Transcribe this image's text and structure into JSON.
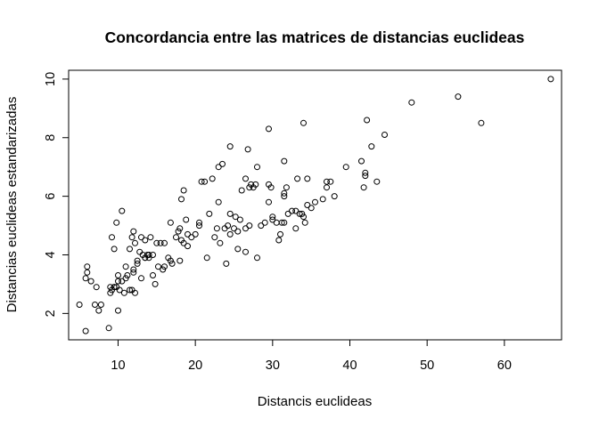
{
  "chart_data": {
    "type": "scatter",
    "title": "Concordancia entre las matrices de distancias euclideas",
    "xlabel": "Distancis euclideas",
    "ylabel": "Distancias euclideas estandarizadas",
    "xlim": [
      3.6,
      67.4
    ],
    "ylim": [
      1.1,
      10.3
    ],
    "xticks": [
      10,
      20,
      30,
      40,
      50,
      60
    ],
    "yticks": [
      2,
      4,
      6,
      8,
      10
    ],
    "grid": false,
    "legend": "none",
    "marker": "open-circle",
    "point_color": "#000000",
    "x": [
      5.0,
      5.8,
      5.8,
      6.0,
      6.5,
      6.0,
      7.0,
      7.2,
      7.5,
      7.8,
      8.8,
      9.0,
      9.2,
      9.2,
      9.5,
      9.5,
      9.8,
      9.8,
      10.0,
      10.0,
      10.2,
      10.5,
      10.5,
      10.8,
      11.0,
      11.2,
      11.5,
      11.5,
      11.8,
      11.8,
      12.0,
      12.0,
      12.2,
      12.2,
      12.5,
      12.8,
      13.0,
      13.0,
      13.2,
      13.5,
      13.5,
      13.8,
      14.0,
      14.2,
      14.5,
      14.8,
      15.0,
      15.2,
      15.8,
      16.0,
      16.5,
      16.8,
      16.8,
      17.5,
      17.8,
      18.0,
      18.2,
      18.5,
      18.5,
      18.8,
      19.0,
      19.5,
      20.0,
      20.5,
      20.8,
      21.2,
      21.8,
      22.2,
      22.8,
      23.0,
      23.2,
      23.5,
      23.8,
      24.0,
      24.2,
      24.5,
      25.0,
      25.2,
      25.5,
      25.8,
      26.0,
      26.5,
      26.8,
      27.0,
      27.2,
      27.5,
      27.8,
      28.0,
      28.5,
      29.0,
      29.5,
      29.8,
      30.0,
      30.5,
      30.8,
      31.0,
      31.2,
      31.5,
      31.5,
      31.8,
      32.0,
      32.5,
      33.0,
      33.2,
      33.5,
      33.8,
      34.0,
      34.2,
      34.5,
      35.0,
      35.5,
      36.5,
      37.0,
      37.5,
      38.0,
      39.5,
      41.5,
      41.8,
      42.0,
      42.2,
      42.8,
      43.5,
      44.5,
      48.0,
      54.0,
      57.0,
      66.0,
      9.0,
      9.5,
      10.0,
      11.0,
      12.0,
      12.5,
      14.0,
      14.5,
      15.5,
      17.0,
      18.0,
      18.2,
      19.0,
      20.5,
      21.5,
      22.5,
      23.0,
      24.5,
      24.5,
      25.5,
      26.5,
      27.0,
      28.0,
      29.5,
      30.0,
      31.5,
      31.5,
      33.0,
      34.0,
      34.5,
      37.0,
      42.0,
      26.5,
      29.5,
      13.5,
      16.0
    ],
    "y": [
      2.3,
      1.4,
      3.2,
      3.6,
      3.1,
      3.4,
      2.3,
      2.9,
      2.1,
      2.3,
      1.5,
      2.7,
      2.8,
      4.6,
      2.9,
      4.2,
      2.9,
      5.1,
      3.3,
      2.1,
      2.8,
      5.5,
      3.1,
      2.7,
      3.6,
      3.3,
      2.8,
      4.2,
      2.8,
      4.6,
      4.8,
      3.5,
      4.4,
      2.7,
      3.8,
      4.1,
      3.2,
      4.6,
      4.0,
      3.9,
      4.5,
      4.0,
      4.0,
      4.6,
      3.3,
      3.0,
      4.4,
      3.6,
      3.5,
      4.4,
      3.9,
      5.1,
      3.8,
      4.6,
      4.8,
      4.9,
      5.9,
      6.2,
      4.4,
      5.2,
      4.3,
      4.6,
      4.7,
      5.1,
      6.5,
      6.5,
      5.4,
      6.6,
      4.9,
      7.0,
      4.4,
      7.1,
      4.9,
      3.7,
      5.0,
      7.7,
      4.9,
      5.3,
      4.8,
      5.2,
      6.2,
      6.6,
      7.6,
      6.3,
      6.4,
      6.3,
      6.4,
      7.0,
      5.0,
      5.1,
      8.3,
      6.3,
      5.2,
      5.1,
      4.5,
      4.7,
      5.1,
      6.1,
      7.2,
      6.3,
      5.4,
      5.5,
      5.5,
      6.6,
      5.4,
      5.4,
      5.3,
      5.1,
      6.6,
      5.6,
      5.8,
      5.9,
      6.5,
      6.5,
      6.0,
      7.0,
      7.2,
      6.3,
      6.8,
      8.6,
      7.7,
      6.5,
      8.1,
      9.2,
      9.4,
      8.5,
      10.0,
      2.9,
      2.9,
      3.1,
      3.2,
      3.4,
      3.7,
      3.9,
      4.0,
      4.4,
      3.7,
      3.8,
      4.5,
      4.7,
      5.0,
      3.9,
      4.6,
      5.8,
      4.7,
      5.4,
      4.2,
      4.9,
      5.0,
      3.9,
      6.4,
      5.3,
      6.0,
      5.1,
      4.9,
      8.5,
      5.7,
      6.3,
      6.7,
      4.1,
      5.8,
      3.9,
      3.6
    ]
  }
}
